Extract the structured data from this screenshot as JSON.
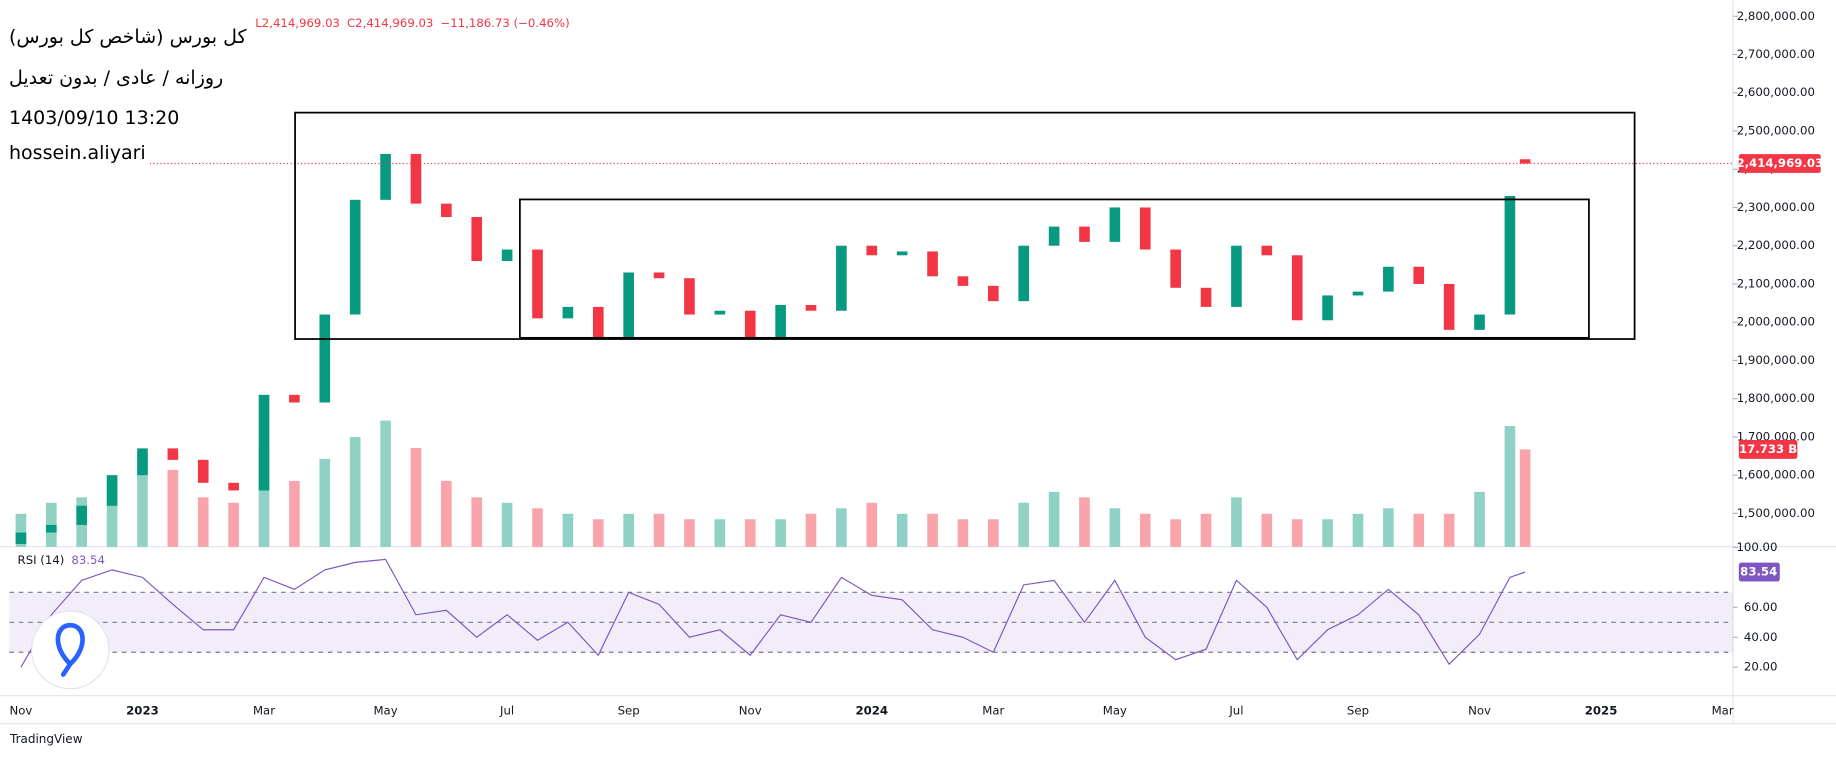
{
  "overlay_text": [
    "کل بورس (شاخص کل بورس)",
    "روزانه / عادی / بدون تعدیل",
    "1403/09/10 13:20",
    "hossein.aliyari"
  ],
  "footer": "TradingView",
  "chart_data": [
    {
      "type": "candlestick",
      "legend": [
        "L2,414,969.03",
        "C2,414,969.03",
        "−11,186.73 (−0.46%)"
      ],
      "x": [
        0,
        0.5,
        1,
        1.5,
        2,
        2.5,
        3,
        3.5,
        4,
        4.5,
        5,
        5.5,
        6,
        6.5,
        7,
        7.5,
        8,
        8.5,
        9,
        9.5,
        10,
        10.5,
        11,
        11.5,
        12,
        12.5,
        13,
        13.5,
        14,
        14.5,
        15,
        15.5,
        16,
        16.5,
        17,
        17.5,
        18,
        18.5,
        19,
        19.5,
        20,
        20.5,
        21,
        21.5,
        22,
        22.5,
        23,
        23.5,
        24,
        24.5,
        24.75
      ],
      "open": [
        1420000,
        1450000,
        1470000,
        1520000,
        1600000,
        1670000,
        1640000,
        1580000,
        1560000,
        1810000,
        1790000,
        2020000,
        2320000,
        2440000,
        2310000,
        2275000,
        2160000,
        2190000,
        2010000,
        2040000,
        1960000,
        2130000,
        2115000,
        2020000,
        2030000,
        1960000,
        2045000,
        2030000,
        2200000,
        2175000,
        2185000,
        2120000,
        2095000,
        2055000,
        2200000,
        2250000,
        2210000,
        2300000,
        2190000,
        2090000,
        2040000,
        2200000,
        2175000,
        2005000,
        2070000,
        2080000,
        2145000,
        2100000,
        1980000,
        2020000,
        2426156
      ],
      "close": [
        1450000,
        1470000,
        1520000,
        1600000,
        1670000,
        1640000,
        1580000,
        1560000,
        1810000,
        1790000,
        2020000,
        2320000,
        2440000,
        2310000,
        2275000,
        2160000,
        2190000,
        2010000,
        2040000,
        1960000,
        2130000,
        2115000,
        2020000,
        2030000,
        1960000,
        2045000,
        2030000,
        2200000,
        2175000,
        2185000,
        2120000,
        2095000,
        2055000,
        2200000,
        2250000,
        2210000,
        2300000,
        2190000,
        2090000,
        2040000,
        2200000,
        2175000,
        2005000,
        2070000,
        2080000,
        2145000,
        2100000,
        1980000,
        2020000,
        2330000,
        2414969.03
      ],
      "up_color": "#089981",
      "down_color": "#f23645",
      "xlim": [
        -0.19,
        28.17
      ],
      "xticks": [
        {
          "value": 0,
          "label": "Nov"
        },
        {
          "value": 2,
          "label": "2023"
        },
        {
          "value": 4,
          "label": "Mar"
        },
        {
          "value": 6,
          "label": "May"
        },
        {
          "value": 8,
          "label": "Jul"
        },
        {
          "value": 10,
          "label": "Sep"
        },
        {
          "value": 12,
          "label": "Nov"
        },
        {
          "value": 14,
          "label": "2024"
        },
        {
          "value": 16,
          "label": "Mar"
        },
        {
          "value": 18,
          "label": "May"
        },
        {
          "value": 20,
          "label": "Jul"
        },
        {
          "value": 22,
          "label": "Sep"
        },
        {
          "value": 24,
          "label": "Nov"
        },
        {
          "value": 26,
          "label": "2025"
        },
        {
          "value": 28,
          "label": "Mar"
        }
      ],
      "ylim": [
        1413000,
        2818000
      ],
      "yticks": [
        {
          "value": 1500000,
          "label": "1,500,000.00"
        },
        {
          "value": 1600000,
          "label": "1,600,000.00"
        },
        {
          "value": 1700000,
          "label": "1,700,000.00"
        },
        {
          "value": 1800000,
          "label": "1,800,000.00"
        },
        {
          "value": 1900000,
          "label": "1,900,000.00"
        },
        {
          "value": 2000000,
          "label": "2,000,000.00"
        },
        {
          "value": 2100000,
          "label": "2,100,000.00"
        },
        {
          "value": 2200000,
          "label": "2,200,000.00"
        },
        {
          "value": 2300000,
          "label": "2,300,000.00"
        },
        {
          "value": 2400000,
          "label": "2,400,000.00"
        },
        {
          "value": 2500000,
          "label": "2,500,000.00"
        },
        {
          "value": 2600000,
          "label": "2,600,000.00"
        },
        {
          "value": 2700000,
          "label": "2,700,000.00"
        },
        {
          "value": 2800000,
          "label": "2,800,000.00"
        }
      ],
      "last_label": "2,414,969.03",
      "volume": {
        "values": [
          6,
          8,
          9,
          12,
          17,
          14,
          9,
          8,
          18,
          12,
          16,
          20,
          23,
          18,
          12,
          9,
          8,
          7,
          6,
          5,
          6,
          6,
          5,
          5,
          5,
          5,
          6,
          7,
          8,
          6,
          6,
          5,
          5,
          8,
          10,
          9,
          7,
          6,
          5,
          6,
          9,
          6,
          5,
          5,
          6,
          7,
          6,
          6,
          10,
          22,
          17.733
        ],
        "y2lim": [
          0,
          98
        ],
        "last_label": "17.733 B"
      }
    },
    {
      "type": "line",
      "name": "RSI (14)",
      "color": "#7e57c2",
      "values": [
        20,
        55,
        78,
        85,
        80,
        62,
        45,
        45,
        80,
        72,
        85,
        90,
        92,
        55,
        58,
        40,
        55,
        38,
        50,
        28,
        70,
        62,
        40,
        45,
        28,
        55,
        50,
        80,
        68,
        65,
        45,
        40,
        30,
        75,
        78,
        50,
        78,
        40,
        25,
        32,
        78,
        60,
        25,
        45,
        55,
        72,
        55,
        22,
        42,
        80,
        83.54
      ],
      "ylim": [
        1,
        100.5
      ],
      "yticks": [
        {
          "value": 20,
          "label": "20.00"
        },
        {
          "value": 40,
          "label": "40.00"
        },
        {
          "value": 60,
          "label": "60.00"
        },
        {
          "value": 100,
          "label": "100.00"
        }
      ],
      "levels": [
        70,
        50,
        30
      ]
    }
  ]
}
